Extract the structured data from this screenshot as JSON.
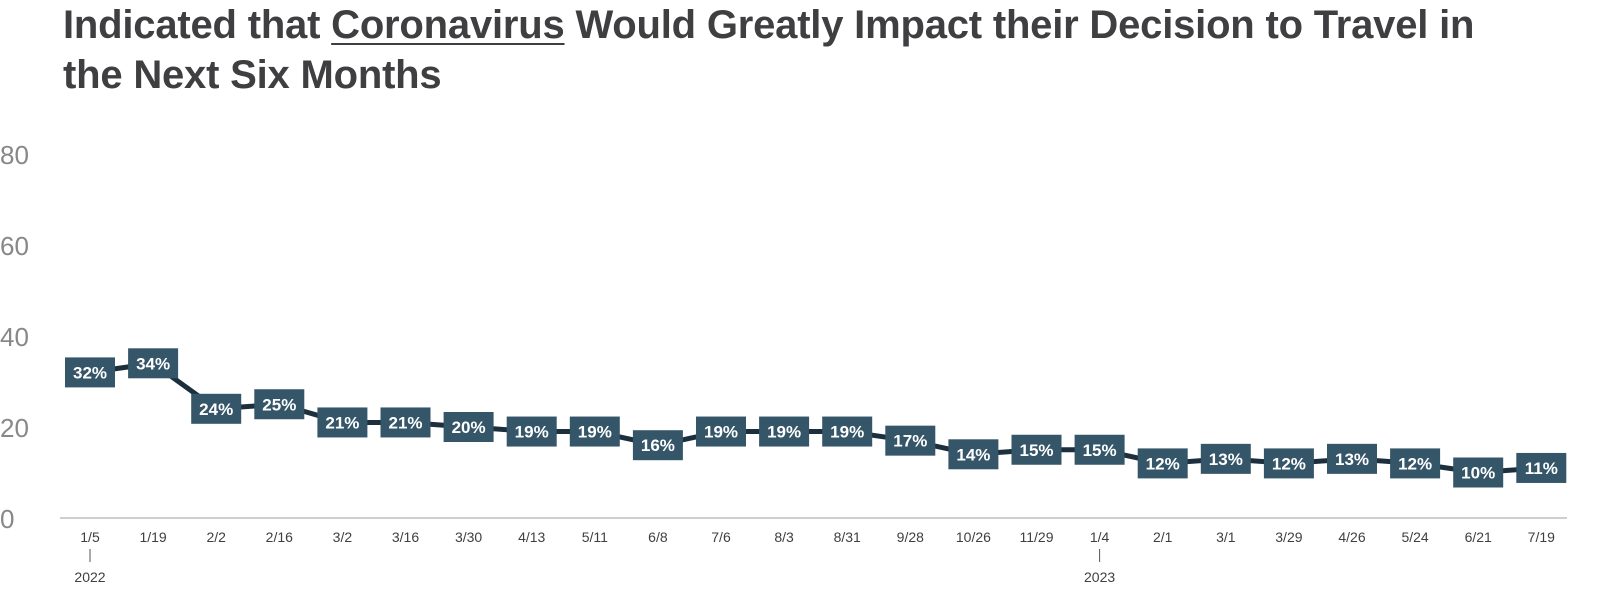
{
  "title": {
    "before": "Indicated that ",
    "emphasis": "Coronavirus",
    "after": " Would Greatly Impact their Decision to Travel in the Next Six Months"
  },
  "chart_data": {
    "type": "line",
    "title": "Indicated that Coronavirus Would Greatly Impact their Decision to Travel in the Next Six Months",
    "xlabel": "",
    "ylabel": "",
    "ylim": [
      0,
      80
    ],
    "yticks": [
      0,
      20,
      40,
      60,
      80
    ],
    "grid": false,
    "categories": [
      "1/5",
      "1/19",
      "2/2",
      "2/16",
      "3/2",
      "3/16",
      "3/30",
      "4/13",
      "5/11",
      "6/8",
      "7/6",
      "8/3",
      "8/31",
      "9/28",
      "10/26",
      "11/29",
      "1/4",
      "2/1",
      "3/1",
      "3/29",
      "4/26",
      "5/24",
      "6/21",
      "7/19"
    ],
    "year_markers": [
      {
        "category": "1/5",
        "label": "2022"
      },
      {
        "category": "1/4",
        "label": "2023"
      }
    ],
    "series": [
      {
        "values": [
          32,
          34,
          24,
          25,
          21,
          21,
          20,
          19,
          19,
          16,
          19,
          19,
          19,
          17,
          14,
          15,
          15,
          12,
          13,
          12,
          13,
          12,
          10,
          11
        ],
        "labels": [
          "32%",
          "34%",
          "24%",
          "25%",
          "21%",
          "21%",
          "20%",
          "19%",
          "19%",
          "16%",
          "19%",
          "19%",
          "19%",
          "17%",
          "14%",
          "15%",
          "15%",
          "12%",
          "13%",
          "12%",
          "13%",
          "12%",
          "10%",
          "11%"
        ]
      }
    ],
    "colors": {
      "line": "#1b2f3d",
      "label_box": "#355669",
      "label_text": "#ffffff",
      "axis_text": "#888888",
      "tick_text": "#3f3f3f",
      "title": "#3f3f42"
    }
  }
}
